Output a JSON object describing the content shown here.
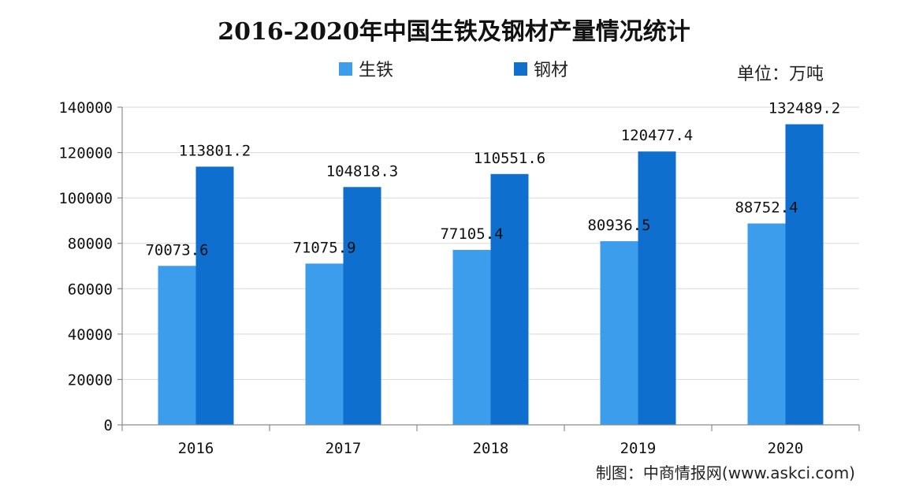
{
  "chart_data": {
    "type": "bar",
    "title": "2016-2020年中国生铁及钢材产量情况统计",
    "unit_label": "单位：万吨",
    "source_label": "制图：中商情报网(www.askci.com)",
    "categories": [
      "2016",
      "2017",
      "2018",
      "2019",
      "2020"
    ],
    "series": [
      {
        "name": "生铁",
        "color": "#3d9ded",
        "values": [
          70073.6,
          71075.9,
          77105.4,
          80936.5,
          88752.4
        ],
        "labels": [
          "70073.6",
          "71075.9",
          "77105.4",
          "80936.5",
          "88752.4"
        ]
      },
      {
        "name": "钢材",
        "color": "#0f6fcf",
        "values": [
          113801.2,
          104818.3,
          110551.6,
          120477.4,
          132489.2
        ],
        "labels": [
          "113801.2",
          "104818.3",
          "110551.6",
          "120477.4",
          "132489.2"
        ]
      }
    ],
    "ylim": [
      0,
      140000
    ],
    "yticks": [
      0,
      20000,
      40000,
      60000,
      80000,
      100000,
      120000,
      140000
    ],
    "grid": true,
    "legend_position": "top-center"
  }
}
